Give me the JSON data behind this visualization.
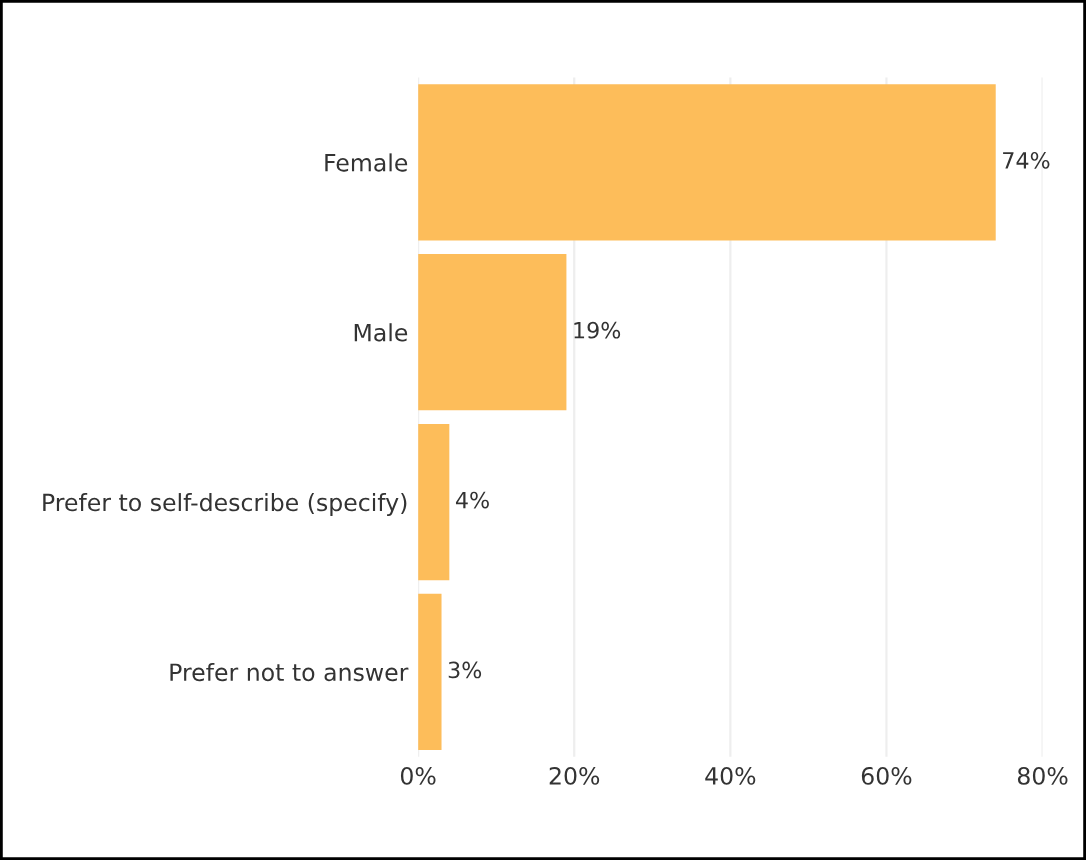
{
  "chart_data": {
    "type": "bar",
    "orientation": "horizontal",
    "categories": [
      "Female",
      "Male",
      "Prefer to self-describe (specify)",
      "Prefer not to answer"
    ],
    "values": [
      74,
      19,
      4,
      3
    ],
    "value_labels": [
      "74%",
      "19%",
      "4%",
      "3%"
    ],
    "color": "#fdbd5a",
    "xlim": [
      0,
      80
    ],
    "xticks": [
      {
        "value": 0,
        "label": "0%"
      },
      {
        "value": 20,
        "label": "20%"
      },
      {
        "value": 40,
        "label": "40%"
      },
      {
        "value": 60,
        "label": "60%"
      },
      {
        "value": 80,
        "label": "80%"
      }
    ],
    "grid": "x",
    "legend": false
  }
}
